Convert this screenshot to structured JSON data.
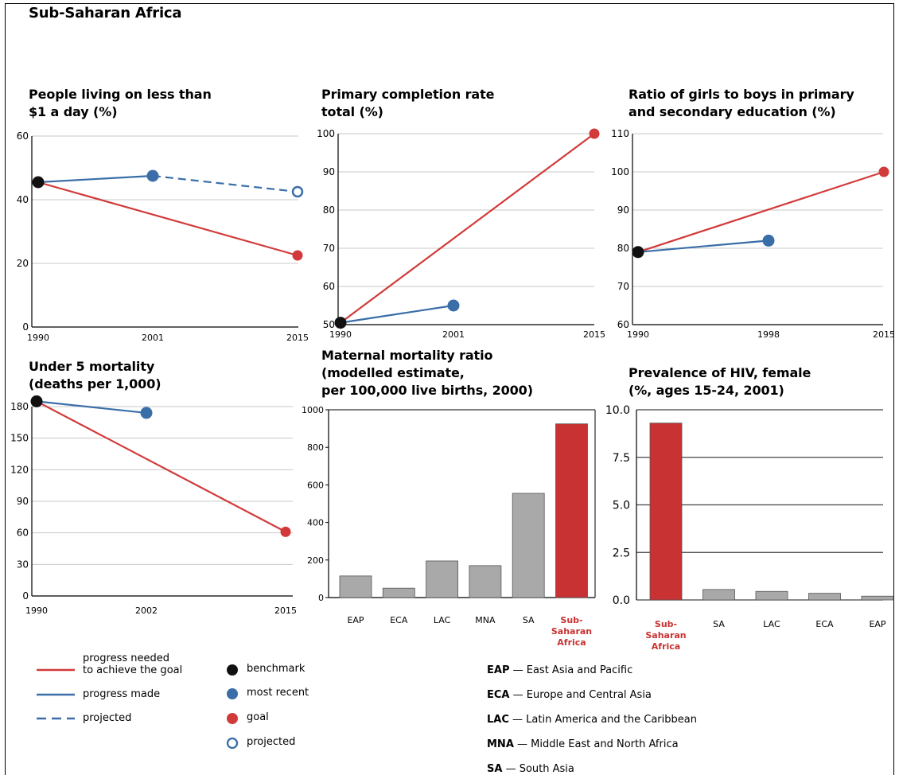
{
  "title": "Sub-Saharan Africa",
  "colors": {
    "goal": "#d23a3a",
    "progress": "#3a6ea8",
    "benchmark": "#111111",
    "bar_gray": "#a9a9a9",
    "bar_highlight": "#c83232"
  },
  "chart_data": [
    {
      "id": "c1",
      "type": "line",
      "title": "People living on less than\n$1 a day (%)",
      "x_ticks": [
        "1990",
        "2001",
        "2015"
      ],
      "ylim": [
        0,
        60
      ],
      "y_ticks": [
        0,
        20,
        40,
        60
      ],
      "series": [
        {
          "role": "goal",
          "points": [
            [
              1990,
              45.5
            ],
            [
              2015,
              22.5
            ]
          ]
        },
        {
          "role": "progress",
          "points": [
            [
              1990,
              45.5
            ],
            [
              2001,
              47.5
            ]
          ]
        },
        {
          "role": "projected",
          "points": [
            [
              2001,
              47.5
            ],
            [
              2015,
              42.5
            ]
          ]
        }
      ],
      "markers": [
        {
          "role": "benchmark",
          "x": 1990,
          "y": 45.5
        },
        {
          "role": "most_recent",
          "x": 2001,
          "y": 47.5
        },
        {
          "role": "goal",
          "x": 2015,
          "y": 22.5
        },
        {
          "role": "projected",
          "x": 2015,
          "y": 42.5
        }
      ]
    },
    {
      "id": "c2",
      "type": "line",
      "title": "Primary completion rate\ntotal (%)",
      "x_ticks": [
        "1990",
        "2001",
        "2015"
      ],
      "ylim": [
        50,
        100
      ],
      "y_ticks": [
        50,
        60,
        70,
        80,
        90,
        100
      ],
      "series": [
        {
          "role": "goal",
          "points": [
            [
              1990,
              50.5
            ],
            [
              2015,
              100
            ]
          ]
        },
        {
          "role": "progress",
          "points": [
            [
              1990,
              50.5
            ],
            [
              2001,
              55
            ]
          ]
        }
      ],
      "markers": [
        {
          "role": "benchmark",
          "x": 1990,
          "y": 50.5
        },
        {
          "role": "most_recent",
          "x": 2001,
          "y": 55
        },
        {
          "role": "goal",
          "x": 2015,
          "y": 100
        }
      ]
    },
    {
      "id": "c3",
      "type": "line",
      "title": "Ratio of girls to boys in primary\nand secondary education (%)",
      "x_ticks": [
        "1990",
        "1998",
        "2015"
      ],
      "ylim": [
        60,
        110
      ],
      "y_ticks": [
        60,
        70,
        80,
        90,
        100,
        110
      ],
      "series": [
        {
          "role": "goal",
          "points": [
            [
              1990,
              79
            ],
            [
              2015,
              100
            ]
          ]
        },
        {
          "role": "progress",
          "points": [
            [
              1990,
              79
            ],
            [
              1998,
              82
            ]
          ]
        }
      ],
      "markers": [
        {
          "role": "benchmark",
          "x": 1990,
          "y": 79
        },
        {
          "role": "most_recent",
          "x": 1998,
          "y": 82
        },
        {
          "role": "goal",
          "x": 2015,
          "y": 100
        }
      ]
    },
    {
      "id": "c4",
      "type": "line",
      "title": "Under 5 mortality\n(deaths per 1,000)",
      "x_ticks": [
        "1990",
        "2002",
        "2015"
      ],
      "ylim": [
        0,
        180
      ],
      "y_ticks": [
        0,
        30,
        60,
        90,
        120,
        150,
        180
      ],
      "series": [
        {
          "role": "goal",
          "points": [
            [
              1990,
              185
            ],
            [
              2015,
              61
            ]
          ]
        },
        {
          "role": "progress",
          "points": [
            [
              1990,
              185
            ],
            [
              2002,
              174
            ]
          ]
        }
      ],
      "markers": [
        {
          "role": "benchmark",
          "x": 1990,
          "y": 185
        },
        {
          "role": "most_recent",
          "x": 2002,
          "y": 174
        },
        {
          "role": "goal",
          "x": 2015,
          "y": 61
        }
      ]
    },
    {
      "id": "c5",
      "type": "bar",
      "title": "Maternal mortality ratio\n(modelled estimate,\nper 100,000 live births, 2000)",
      "categories": [
        "EAP",
        "ECA",
        "LAC",
        "MNA",
        "SA",
        "Sub-\nSaharan\nAfrica"
      ],
      "values": [
        115,
        50,
        195,
        170,
        555,
        925
      ],
      "highlight": 5,
      "ylim": [
        0,
        1000
      ],
      "y_ticks": [
        0,
        200,
        400,
        600,
        800,
        1000
      ]
    },
    {
      "id": "c6",
      "type": "bar",
      "title": "Prevalence of HIV, female\n(%, ages 15-24, 2001)",
      "categories": [
        "Sub-\nSaharan\nAfrica",
        "SA",
        "LAC",
        "ECA",
        "EAP"
      ],
      "values": [
        9.3,
        0.55,
        0.45,
        0.35,
        0.2
      ],
      "highlight": 0,
      "ylim": [
        0,
        10
      ],
      "y_ticks": [
        "0.0",
        "2.5",
        "5.0",
        "7.5",
        "10.0"
      ]
    }
  ],
  "legend": {
    "lines": [
      {
        "style": "goal",
        "label": "progress needed\nto achieve the goal"
      },
      {
        "style": "progress",
        "label": "progress made"
      },
      {
        "style": "projected",
        "label": "projected"
      }
    ],
    "markers": [
      {
        "style": "benchmark",
        "label": "benchmark"
      },
      {
        "style": "most_recent",
        "label": "most recent"
      },
      {
        "style": "goal",
        "label": "goal"
      },
      {
        "style": "projected",
        "label": "projected"
      }
    ]
  },
  "abbreviations": [
    {
      "code": "EAP",
      "name": "East Asia and Pacific"
    },
    {
      "code": "ECA",
      "name": "Europe and Central Asia"
    },
    {
      "code": "LAC",
      "name": "Latin America and the Caribbean"
    },
    {
      "code": "MNA",
      "name": "Middle East and North Africa"
    },
    {
      "code": "SA",
      "name": "South Asia"
    }
  ]
}
